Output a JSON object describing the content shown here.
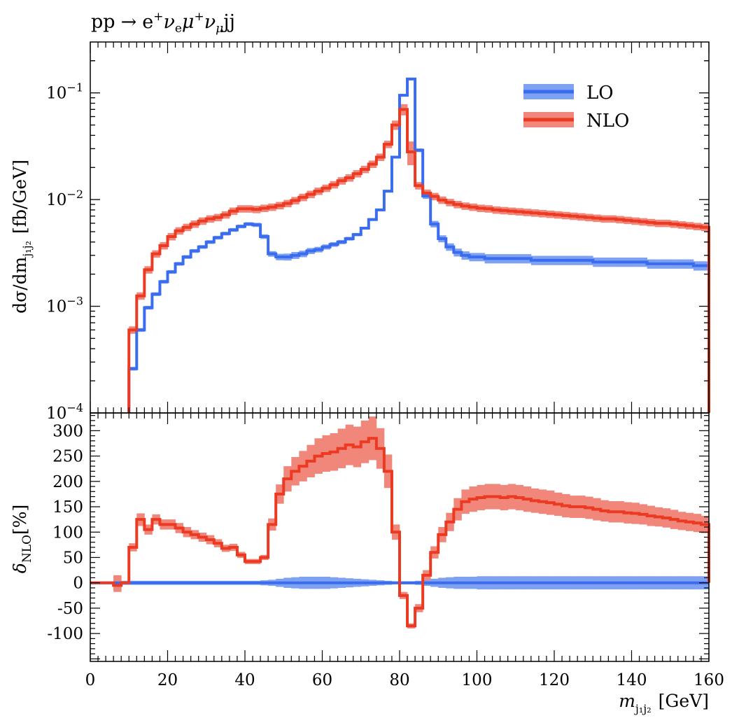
{
  "chart_data": [
    {
      "type": "line",
      "title": "pp → e⁺ν_eμ⁺ν_μjj",
      "title_parts": {
        "initial": "pp",
        "arrow": "→",
        "e": "e",
        "plus": "+",
        "nu": "ν",
        "e_sub": "e",
        "mu": "μ",
        "mu_sub": "μ",
        "jj": "jj"
      },
      "ylabel": "dσ/dm_{j1j2} [fb/GeV]",
      "ylabel_parts": {
        "main": "dσ/dm",
        "sub": "j₁j₂",
        "unit": "[fb/GeV]"
      },
      "yscale": "log",
      "xlim": [
        0,
        160
      ],
      "ylim": [
        0.0001,
        0.3
      ],
      "yticks": [
        {
          "value": 0.1,
          "base": "10",
          "exp": "−1"
        },
        {
          "value": 0.01,
          "base": "10",
          "exp": "−2"
        },
        {
          "value": 0.001,
          "base": "10",
          "exp": "−3"
        },
        {
          "value": 0.0001,
          "base": "10",
          "exp": "−4"
        }
      ],
      "legend_position": "top-right",
      "bin_edges": [
        0,
        2,
        4,
        6,
        8,
        10,
        12,
        14,
        16,
        18,
        20,
        22,
        24,
        26,
        28,
        30,
        32,
        34,
        36,
        38,
        40,
        42,
        44,
        46,
        48,
        50,
        52,
        54,
        56,
        58,
        60,
        62,
        64,
        66,
        68,
        70,
        72,
        74,
        76,
        78,
        80,
        82,
        84,
        86,
        88,
        90,
        92,
        94,
        96,
        98,
        100,
        102,
        104,
        106,
        108,
        110,
        112,
        114,
        116,
        118,
        120,
        122,
        124,
        126,
        128,
        130,
        132,
        134,
        136,
        138,
        140,
        142,
        144,
        146,
        148,
        150,
        152,
        154,
        156,
        158,
        160
      ],
      "series": [
        {
          "name": "LO",
          "color": "#3a6cf0",
          "band_color": "#7fa1f2",
          "values": [
            null,
            null,
            null,
            null,
            null,
            0.00026,
            0.0006,
            0.00097,
            0.0013,
            0.0017,
            0.0021,
            0.0025,
            0.0029,
            0.0033,
            0.0036,
            0.004,
            0.0044,
            0.0048,
            0.0052,
            0.0056,
            0.0059,
            0.0058,
            0.0045,
            0.0031,
            0.0029,
            0.0029,
            0.003,
            0.0031,
            0.0033,
            0.0034,
            0.0036,
            0.0038,
            0.004,
            0.0043,
            0.0047,
            0.0054,
            0.0065,
            0.008,
            0.012,
            0.025,
            0.095,
            0.135,
            0.029,
            0.0108,
            0.0059,
            0.0043,
            0.0036,
            0.0032,
            0.003,
            0.0029,
            0.0029,
            0.0028,
            0.0028,
            0.0028,
            0.0028,
            0.0028,
            0.0028,
            0.0027,
            0.0027,
            0.0027,
            0.0027,
            0.0027,
            0.0027,
            0.0027,
            0.0027,
            0.0026,
            0.0026,
            0.0026,
            0.0026,
            0.0026,
            0.0026,
            0.0026,
            0.0025,
            0.0025,
            0.0025,
            0.0025,
            0.0025,
            0.0025,
            0.0024,
            0.0024
          ],
          "band_rel": [
            0,
            0,
            0,
            0,
            0,
            0.04,
            0.04,
            0.04,
            0.04,
            0.04,
            0.04,
            0.04,
            0.04,
            0.04,
            0.04,
            0.04,
            0.04,
            0.04,
            0.04,
            0.04,
            0.04,
            0.045,
            0.05,
            0.06,
            0.07,
            0.075,
            0.075,
            0.07,
            0.065,
            0.06,
            0.055,
            0.05,
            0.045,
            0.04,
            0.035,
            0.03,
            0.03,
            0.03,
            0.03,
            0.03,
            0.03,
            0.03,
            0.04,
            0.06,
            0.07,
            0.075,
            0.08,
            0.085,
            0.09,
            0.09,
            0.09,
            0.1,
            0.1,
            0.1,
            0.1,
            0.1,
            0.1,
            0.1,
            0.1,
            0.1,
            0.1,
            0.1,
            0.1,
            0.1,
            0.1,
            0.1,
            0.1,
            0.1,
            0.1,
            0.1,
            0.1,
            0.1,
            0.1,
            0.1,
            0.1,
            0.1,
            0.1,
            0.1,
            0.1,
            0.1
          ]
        },
        {
          "name": "NLO",
          "color": "#ec3a22",
          "band_color": "#f0877a",
          "values": [
            null,
            null,
            null,
            null,
            null,
            0.0006,
            0.00125,
            0.0022,
            0.0031,
            0.0037,
            0.0045,
            0.0051,
            0.0055,
            0.0059,
            0.0063,
            0.0066,
            0.0068,
            0.0072,
            0.0078,
            0.0082,
            0.0082,
            0.0081,
            0.0083,
            0.0085,
            0.0088,
            0.0092,
            0.0098,
            0.0105,
            0.0112,
            0.012,
            0.0128,
            0.0138,
            0.015,
            0.016,
            0.0175,
            0.0192,
            0.0215,
            0.025,
            0.033,
            0.05,
            0.07,
            0.028,
            0.0135,
            0.0115,
            0.0107,
            0.0099,
            0.0094,
            0.009,
            0.0087,
            0.0085,
            0.0083,
            0.0082,
            0.008,
            0.0079,
            0.0078,
            0.0077,
            0.0076,
            0.0075,
            0.0074,
            0.0073,
            0.0072,
            0.0071,
            0.007,
            0.0069,
            0.0068,
            0.0067,
            0.0066,
            0.0066,
            0.0065,
            0.0064,
            0.0063,
            0.0062,
            0.0061,
            0.006,
            0.006,
            0.0059,
            0.0058,
            0.0057,
            0.0056,
            0.0055
          ],
          "band_rel": [
            0,
            0,
            0,
            0,
            0,
            0.08,
            0.08,
            0.08,
            0.08,
            0.08,
            0.08,
            0.08,
            0.08,
            0.08,
            0.08,
            0.08,
            0.08,
            0.08,
            0.08,
            0.08,
            0.08,
            0.08,
            0.08,
            0.08,
            0.08,
            0.08,
            0.08,
            0.08,
            0.08,
            0.08,
            0.08,
            0.08,
            0.08,
            0.08,
            0.08,
            0.08,
            0.08,
            0.08,
            0.08,
            0.1,
            0.12,
            0.25,
            0.08,
            0.08,
            0.08,
            0.08,
            0.08,
            0.08,
            0.08,
            0.08,
            0.08,
            0.08,
            0.08,
            0.08,
            0.08,
            0.08,
            0.08,
            0.08,
            0.08,
            0.08,
            0.08,
            0.08,
            0.08,
            0.08,
            0.08,
            0.08,
            0.08,
            0.08,
            0.08,
            0.08,
            0.08,
            0.08,
            0.08,
            0.08,
            0.08,
            0.08,
            0.08,
            0.08,
            0.08,
            0.08
          ]
        }
      ]
    },
    {
      "type": "line",
      "ylabel": "δ_NLO[%]",
      "ylabel_parts": {
        "main": "δ",
        "sub": "NLO",
        "unit": "[%]"
      },
      "xlabel": "m_{j1j2} [GeV]",
      "xlabel_parts": {
        "main": "m",
        "sub": "j₁j₂",
        "unit": "[GeV]"
      },
      "xlim": [
        0,
        160
      ],
      "ylim": [
        -155,
        335
      ],
      "xticks": [
        "0",
        "20",
        "40",
        "60",
        "80",
        "100",
        "120",
        "140",
        "160"
      ],
      "yticks": [
        "300",
        "250",
        "200",
        "150",
        "100",
        "50",
        "0",
        "-50",
        "-100"
      ],
      "bin_edges": [
        0,
        2,
        4,
        6,
        8,
        10,
        12,
        14,
        16,
        18,
        20,
        22,
        24,
        26,
        28,
        30,
        32,
        34,
        36,
        38,
        40,
        42,
        44,
        46,
        48,
        50,
        52,
        54,
        56,
        58,
        60,
        62,
        64,
        66,
        68,
        70,
        72,
        74,
        76,
        78,
        80,
        82,
        84,
        86,
        88,
        90,
        92,
        94,
        96,
        98,
        100,
        102,
        104,
        106,
        108,
        110,
        112,
        114,
        116,
        118,
        120,
        122,
        124,
        126,
        128,
        130,
        132,
        134,
        136,
        138,
        140,
        142,
        144,
        146,
        148,
        150,
        152,
        154,
        156,
        158,
        160
      ],
      "series": [
        {
          "name": "NLO",
          "color": "#ec3a22",
          "band_color": "#f0877a",
          "values": [
            0,
            0,
            0,
            -5,
            0,
            70,
            125,
            105,
            125,
            115,
            115,
            108,
            100,
            95,
            90,
            85,
            78,
            68,
            70,
            55,
            42,
            42,
            50,
            115,
            175,
            205,
            220,
            230,
            240,
            250,
            255,
            258,
            265,
            272,
            268,
            278,
            285,
            265,
            220,
            100,
            -25,
            -85,
            -50,
            15,
            60,
            95,
            120,
            145,
            160,
            165,
            168,
            170,
            170,
            168,
            170,
            168,
            165,
            162,
            160,
            158,
            155,
            152,
            150,
            150,
            148,
            145,
            142,
            140,
            140,
            138,
            137,
            135,
            132,
            130,
            128,
            125,
            122,
            120,
            118,
            115
          ],
          "band": [
            [
              0,
              0
            ],
            [
              0,
              0
            ],
            [
              0,
              0
            ],
            [
              -18,
              15
            ],
            [
              0,
              0
            ],
            [
              62,
              78
            ],
            [
              112,
              137
            ],
            [
              95,
              115
            ],
            [
              115,
              135
            ],
            [
              105,
              125
            ],
            [
              105,
              125
            ],
            [
              98,
              118
            ],
            [
              90,
              110
            ],
            [
              86,
              104
            ],
            [
              81,
              99
            ],
            [
              76,
              94
            ],
            [
              70,
              86
            ],
            [
              61,
              75
            ],
            [
              63,
              77
            ],
            [
              49,
              61
            ],
            [
              37,
              47
            ],
            [
              37,
              47
            ],
            [
              45,
              55
            ],
            [
              103,
              127
            ],
            [
              156,
              194
            ],
            [
              180,
              230
            ],
            [
              192,
              248
            ],
            [
              200,
              260
            ],
            [
              208,
              272
            ],
            [
              215,
              285
            ],
            [
              219,
              291
            ],
            [
              221,
              295
            ],
            [
              226,
              304
            ],
            [
              232,
              312
            ],
            [
              228,
              308
            ],
            [
              236,
              320
            ],
            [
              242,
              328
            ],
            [
              225,
              305
            ],
            [
              187,
              253
            ],
            [
              85,
              115
            ],
            [
              -32,
              -18
            ],
            [
              -90,
              -80
            ],
            [
              -58,
              -42
            ],
            [
              5,
              25
            ],
            [
              48,
              72
            ],
            [
              80,
              110
            ],
            [
              102,
              138
            ],
            [
              123,
              167
            ],
            [
              136,
              184
            ],
            [
              140,
              190
            ],
            [
              143,
              193
            ],
            [
              145,
              195
            ],
            [
              145,
              195
            ],
            [
              143,
              193
            ],
            [
              145,
              195
            ],
            [
              143,
              193
            ],
            [
              140,
              190
            ],
            [
              138,
              186
            ],
            [
              136,
              184
            ],
            [
              134,
              182
            ],
            [
              132,
              178
            ],
            [
              129,
              175
            ],
            [
              128,
              172
            ],
            [
              128,
              172
            ],
            [
              126,
              170
            ],
            [
              123,
              167
            ],
            [
              121,
              163
            ],
            [
              119,
              161
            ],
            [
              119,
              161
            ],
            [
              117,
              159
            ],
            [
              116,
              158
            ],
            [
              115,
              155
            ],
            [
              112,
              152
            ],
            [
              111,
              149
            ],
            [
              109,
              147
            ],
            [
              106,
              144
            ],
            [
              104,
              140
            ],
            [
              102,
              138
            ],
            [
              100,
              136
            ],
            [
              98,
              132
            ]
          ]
        },
        {
          "name": "LO",
          "color": "#3a6cf0",
          "band_color": "#7fa1f2",
          "values": [
            0,
            0,
            0,
            0,
            0,
            0,
            0,
            0,
            0,
            0,
            0,
            0,
            0,
            0,
            0,
            0,
            0,
            0,
            0,
            0,
            0,
            0,
            0,
            0,
            0,
            0,
            0,
            0,
            0,
            0,
            0,
            0,
            0,
            0,
            0,
            0,
            0,
            0,
            0,
            0,
            0,
            0,
            0,
            0,
            0,
            0,
            0,
            0,
            0,
            0,
            0,
            0,
            0,
            0,
            0,
            0,
            0,
            0,
            0,
            0,
            0,
            0,
            0,
            0,
            0,
            0,
            0,
            0,
            0,
            0,
            0,
            0,
            0,
            0,
            0,
            0,
            0,
            0,
            0,
            0
          ],
          "band_half": [
            0,
            0,
            0,
            12,
            4,
            4,
            4,
            4,
            4,
            4,
            4,
            4,
            4,
            4,
            4,
            4,
            4,
            4,
            4,
            4,
            4,
            4,
            5,
            6,
            8,
            10,
            11,
            12,
            12,
            12,
            12,
            11,
            10,
            9,
            8,
            7,
            6,
            5,
            4,
            3,
            3,
            3,
            4,
            6,
            8,
            10,
            11,
            12,
            12,
            12,
            13,
            13,
            13,
            13,
            13,
            13,
            13,
            13,
            13,
            13,
            13,
            13,
            13,
            13,
            13,
            13,
            13,
            13,
            13,
            13,
            13,
            13,
            13,
            13,
            13,
            13,
            13,
            13,
            13,
            13
          ]
        }
      ]
    }
  ]
}
